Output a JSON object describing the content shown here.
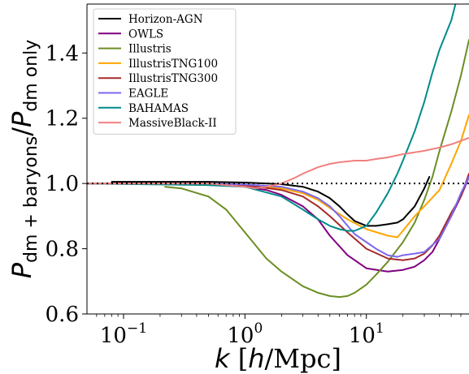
{
  "chart_data": {
    "type": "line",
    "title": "",
    "xlabel": {
      "var": "k",
      "open": " [",
      "unit_h": "h",
      "unit_rest": "/Mpc]"
    },
    "ylabel": {
      "main": "P",
      "sub1": "dm + baryons",
      "slash": "/",
      "main2": "P",
      "sub2": "dm only"
    },
    "x_scale": "log",
    "xlim": [
      0.05,
      70
    ],
    "ylim": [
      0.6,
      1.55
    ],
    "x_ticks": [
      {
        "value": 0.1,
        "mantissa": "10",
        "exp": "−1"
      },
      {
        "value": 1,
        "mantissa": "10",
        "exp": "0"
      },
      {
        "value": 10,
        "mantissa": "10",
        "exp": "1"
      }
    ],
    "y_ticks": [
      {
        "value": 0.6,
        "label": "0.6"
      },
      {
        "value": 0.8,
        "label": "0.8"
      },
      {
        "value": 1.0,
        "label": "1.0"
      },
      {
        "value": 1.2,
        "label": "1.2"
      },
      {
        "value": 1.4,
        "label": "1.4"
      }
    ],
    "reference_line": {
      "y": 1.0,
      "style": "dotted",
      "color": "#000000"
    },
    "legend_position": "top-left",
    "grid": false,
    "series": [
      {
        "name": "Horizon-AGN",
        "color": "#000000",
        "x": [
          0.08,
          0.2,
          0.5,
          1,
          2,
          3,
          4,
          5,
          6,
          7,
          8,
          10,
          12,
          15,
          18,
          20,
          25,
          30,
          33
        ],
        "y": [
          1.005,
          1.005,
          1.005,
          1.003,
          0.998,
          0.99,
          0.975,
          0.955,
          0.93,
          0.905,
          0.885,
          0.87,
          0.87,
          0.875,
          0.88,
          0.89,
          0.93,
          0.985,
          1.02
        ]
      },
      {
        "name": "OWLS",
        "color": "#800080",
        "x": [
          0.05,
          0.3,
          0.7,
          1,
          1.5,
          2,
          3,
          4,
          5,
          7,
          10,
          15,
          20,
          25,
          30,
          35,
          40,
          50,
          60,
          70
        ],
        "y": [
          1.0,
          0.998,
          0.995,
          0.99,
          0.98,
          0.965,
          0.93,
          0.89,
          0.84,
          0.78,
          0.74,
          0.73,
          0.735,
          0.745,
          0.765,
          0.79,
          0.83,
          0.9,
          0.96,
          1.02
        ]
      },
      {
        "name": "Illustris",
        "color": "#6b8e23",
        "x": [
          0.22,
          0.3,
          0.5,
          0.7,
          1,
          1.5,
          2,
          3,
          4,
          5,
          6,
          7,
          8,
          10,
          12,
          15,
          20,
          25,
          30,
          35,
          40,
          50,
          60,
          70
        ],
        "y": [
          0.99,
          0.985,
          0.96,
          0.92,
          0.85,
          0.77,
          0.73,
          0.685,
          0.665,
          0.655,
          0.652,
          0.655,
          0.665,
          0.69,
          0.72,
          0.76,
          0.82,
          0.88,
          0.95,
          1.02,
          1.1,
          1.22,
          1.33,
          1.44
        ]
      },
      {
        "name": "IllustrisTNG100",
        "color": "#ffa500",
        "x": [
          0.05,
          0.5,
          1,
          2,
          3,
          4,
          5,
          7,
          10,
          15,
          18,
          20,
          25,
          30,
          40,
          50,
          60,
          70
        ],
        "y": [
          1.0,
          1.0,
          0.995,
          0.985,
          0.97,
          0.95,
          0.925,
          0.89,
          0.86,
          0.84,
          0.835,
          0.855,
          0.9,
          0.93,
          0.98,
          1.06,
          1.13,
          1.21
        ]
      },
      {
        "name": "IllustrisTNG300",
        "color": "#a52a2a",
        "x": [
          0.05,
          0.5,
          1,
          2,
          3,
          4,
          5,
          7,
          10,
          15,
          20,
          25,
          30,
          35,
          40,
          50,
          60,
          70
        ],
        "y": [
          1.0,
          1.0,
          0.995,
          0.98,
          0.96,
          0.93,
          0.9,
          0.85,
          0.8,
          0.77,
          0.765,
          0.77,
          0.785,
          0.81,
          0.84,
          0.91,
          0.96,
          1.03
        ]
      },
      {
        "name": "EAGLE",
        "color": "#7b68ee",
        "x": [
          0.05,
          0.5,
          1,
          2,
          3,
          4,
          5,
          6,
          7,
          8,
          10,
          12,
          15,
          18,
          20,
          25,
          30,
          40,
          50,
          60,
          70
        ],
        "y": [
          1.0,
          1.0,
          0.997,
          0.99,
          0.975,
          0.955,
          0.93,
          0.9,
          0.87,
          0.845,
          0.82,
          0.8,
          0.78,
          0.775,
          0.78,
          0.785,
          0.79,
          0.83,
          0.9,
          0.97,
          1.02
        ]
      },
      {
        "name": "BAHAMAS",
        "color": "#008b8b",
        "x": [
          0.05,
          0.5,
          1,
          2,
          3,
          4,
          5,
          6,
          7,
          8,
          10,
          12,
          15,
          18,
          20,
          25,
          30,
          35,
          40,
          50,
          55
        ],
        "y": [
          1.0,
          0.995,
          0.99,
          0.96,
          0.92,
          0.89,
          0.87,
          0.86,
          0.855,
          0.855,
          0.87,
          0.91,
          0.97,
          1.03,
          1.07,
          1.16,
          1.25,
          1.34,
          1.41,
          1.5,
          1.56
        ]
      },
      {
        "name": "MassiveBlack-II",
        "color": "#f08080",
        "x": [
          0.05,
          0.5,
          1,
          1.2,
          1.5,
          2,
          2.5,
          3,
          4,
          5,
          6,
          8,
          10,
          12,
          15,
          20,
          30,
          40,
          50,
          70
        ],
        "y": [
          1.0,
          1.0,
          0.99,
          0.985,
          0.99,
          1.0,
          1.015,
          1.03,
          1.05,
          1.06,
          1.065,
          1.07,
          1.07,
          1.075,
          1.08,
          1.09,
          1.1,
          1.11,
          1.12,
          1.14
        ]
      }
    ]
  }
}
